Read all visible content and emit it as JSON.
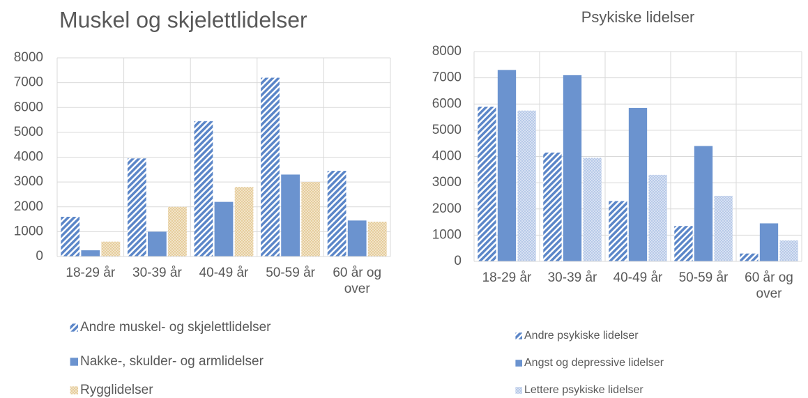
{
  "chart_data": [
    {
      "type": "bar",
      "title": "Muskel og skjelettlidelser",
      "categories": [
        "18-29 år",
        "30-39 år",
        "40-49 år",
        "50-59 år",
        "60 år og over"
      ],
      "series": [
        {
          "name": "Andre muskel- og skjelettlidelser",
          "color": "#5b86c8",
          "pattern": "stripes",
          "values": [
            1600,
            3950,
            5450,
            7200,
            3450
          ]
        },
        {
          "name": "Nakke-, skulder- og armlidelser",
          "color": "#6b93cf",
          "pattern": "solid",
          "values": [
            250,
            1000,
            2200,
            3300,
            1450
          ]
        },
        {
          "name": "Rygglidelser",
          "color": "#e6cd9c",
          "pattern": "dots",
          "values": [
            600,
            2000,
            2800,
            3000,
            1400
          ]
        }
      ],
      "ylim": [
        0,
        8000
      ],
      "yticks": [
        0,
        1000,
        2000,
        3000,
        4000,
        5000,
        6000,
        7000,
        8000
      ],
      "grid": true
    },
    {
      "type": "bar",
      "title": "Psykiske lidelser",
      "categories": [
        "18-29 år",
        "30-39 år",
        "40-49 år",
        "50-59 år",
        "60 år og over"
      ],
      "series": [
        {
          "name": "Andre psykiske lidelser",
          "color": "#5b86c8",
          "pattern": "stripes",
          "values": [
            5900,
            4150,
            2300,
            1350,
            300
          ]
        },
        {
          "name": "Angst og depressive lidelser",
          "color": "#6b93cf",
          "pattern": "solid",
          "values": [
            7300,
            7100,
            5850,
            4400,
            1450
          ]
        },
        {
          "name": "Lettere psykiske lidelser",
          "color": "#b7c9e8",
          "pattern": "dots",
          "values": [
            5750,
            3950,
            3300,
            2500,
            800
          ]
        }
      ],
      "ylim": [
        0,
        8000
      ],
      "yticks": [
        0,
        1000,
        2000,
        3000,
        4000,
        5000,
        6000,
        7000,
        8000
      ],
      "grid": true
    }
  ]
}
